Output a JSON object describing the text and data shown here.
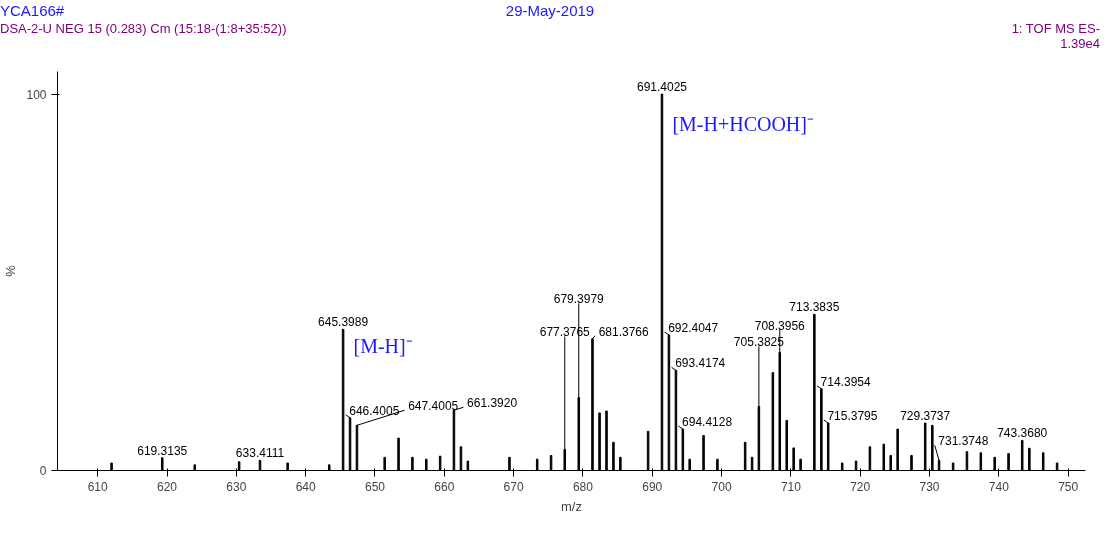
{
  "chart_data": {
    "type": "bar",
    "title": "YCA166#",
    "subtitle": "DSA-2-U NEG 15 (0.283) Cm (15:18-(1:8+35:52))",
    "annotations": [
      "29-May-2019",
      "1: TOF MS ES-",
      "1.39e4",
      {
        "text": "[M-H+HCOOH]⁻",
        "x": 691.4025,
        "y": 92
      },
      {
        "text": "[M-H]⁻",
        "x": 645.3989,
        "y": 33
      },
      {
        "text": "619.3135",
        "x": 619.3135,
        "y": 3.4
      },
      {
        "text": "633.4111",
        "x": 633.4111,
        "y": 2.7
      },
      {
        "text": "645.3989",
        "x": 645.3989,
        "y": 37.5
      },
      {
        "text": "646.4005",
        "x": 646.4005,
        "y": 14
      },
      {
        "text": "647.4005",
        "x": 647.4005,
        "y": 12
      },
      {
        "text": "661.3920",
        "x": 661.392,
        "y": 16
      },
      {
        "text": "677.3765",
        "x": 677.3765,
        "y": 5.6
      },
      {
        "text": "679.3979",
        "x": 679.3979,
        "y": 19.4
      },
      {
        "text": "681.3766",
        "x": 681.3766,
        "y": 35
      },
      {
        "text": "691.4025",
        "x": 691.4025,
        "y": 100
      },
      {
        "text": "692.4047",
        "x": 692.4047,
        "y": 36
      },
      {
        "text": "693.4174",
        "x": 693.4174,
        "y": 26.6
      },
      {
        "text": "694.4128",
        "x": 694.4128,
        "y": 11
      },
      {
        "text": "705.3825",
        "x": 705.3825,
        "y": 17
      },
      {
        "text": "708.3956",
        "x": 708.3956,
        "y": 31.4
      },
      {
        "text": "713.3835",
        "x": 713.3835,
        "y": 41.5
      },
      {
        "text": "714.3954",
        "x": 714.3954,
        "y": 21.7
      },
      {
        "text": "715.3795",
        "x": 715.3795,
        "y": 12.6
      },
      {
        "text": "729.3737",
        "x": 729.3737,
        "y": 12.6
      },
      {
        "text": "731.3748",
        "x": 731.3748,
        "y": 2.7
      },
      {
        "text": "743.3680",
        "x": 743.368,
        "y": 8
      }
    ],
    "xlabel": "m/z",
    "ylabel": "%",
    "xlim": [
      604.2,
      752.5
    ],
    "ylim": [
      0,
      106
    ],
    "xticks": [
      610,
      620,
      630,
      640,
      650,
      660,
      670,
      680,
      690,
      700,
      710,
      720,
      730,
      740,
      750
    ],
    "yticks": [
      0,
      100
    ],
    "grid": false,
    "series": [
      {
        "color": "#000000",
        "x": [
          612,
          619.3135,
          624,
          630.4,
          633.4111,
          637.4,
          643.4,
          645.3989,
          646.4005,
          647.4005,
          651.4,
          653.4,
          655.4,
          657.4,
          659.4,
          661.392,
          662.4,
          663.4,
          669.4,
          673.4,
          675.4,
          677.3765,
          679.3979,
          681.3766,
          682.4,
          683.4,
          684.4,
          685.4,
          689.4,
          691.4025,
          692.4047,
          693.4174,
          694.4128,
          695.4,
          697.4,
          699.4,
          703.4,
          704.4,
          705.3825,
          707.4,
          708.3956,
          709.4,
          710.4,
          711.4,
          713.3835,
          714.3954,
          715.3795,
          717.4,
          719.4,
          721.4,
          723.4,
          724.4,
          725.4,
          727.4,
          729.3737,
          730.4,
          731.3748,
          733.4,
          735.4,
          737.4,
          739.4,
          741.4,
          743.368,
          744.4,
          746.4,
          748.4
        ],
        "values": [
          2,
          3.4,
          1.5,
          2.3,
          2.7,
          2,
          1.5,
          37.5,
          14,
          12,
          3.5,
          8.6,
          3.5,
          3,
          3.8,
          16,
          6.3,
          2.5,
          3.5,
          3,
          4,
          5.6,
          19.4,
          35,
          15.3,
          15.8,
          7.5,
          3.5,
          10.4,
          100,
          36,
          26.6,
          11,
          3,
          9.3,
          3,
          7.5,
          3.5,
          17,
          26,
          31.4,
          13.3,
          6,
          3,
          41.5,
          21.7,
          12.6,
          2,
          2.5,
          6.3,
          7,
          4,
          11,
          4,
          12.6,
          12,
          2.7,
          2,
          5,
          4.7,
          3.5,
          4.5,
          8,
          5.9,
          4.7,
          2
        ]
      }
    ]
  }
}
